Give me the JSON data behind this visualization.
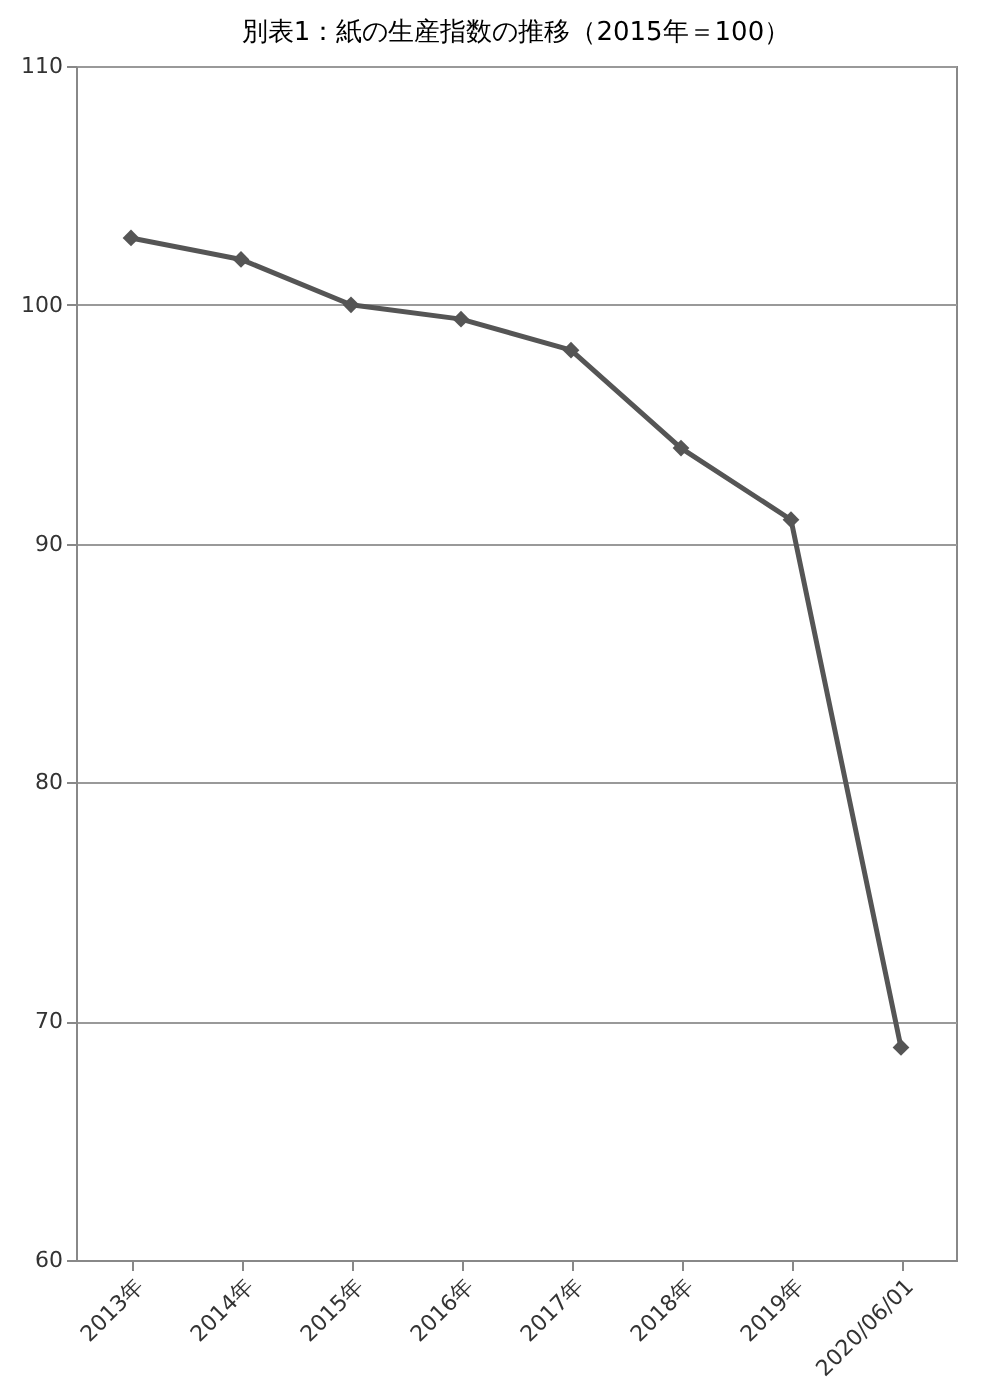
{
  "chart_data": {
    "type": "line",
    "title": "別表1：紙の生産指数の推移（2015年＝100）",
    "categories": [
      "2013年",
      "2014年",
      "2015年",
      "2016年",
      "2017年",
      "2018年",
      "2019年",
      "2020/06/01"
    ],
    "series": [
      {
        "color": "#555555",
        "values": [
          102.8,
          101.9,
          100.0,
          99.4,
          98.1,
          94.0,
          91.0,
          68.9
        ]
      }
    ],
    "ylim": [
      60,
      110
    ],
    "yticks": [
      60,
      70,
      80,
      90,
      100,
      110
    ],
    "grid": "y",
    "legend": false,
    "marker": "diamond",
    "line_style": "solid"
  }
}
